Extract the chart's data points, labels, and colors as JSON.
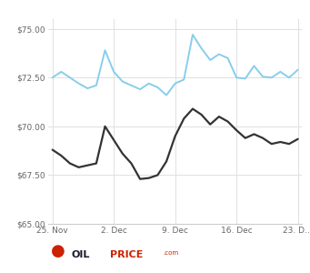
{
  "brent_x": [
    0,
    1,
    2,
    3,
    4,
    5,
    6,
    7,
    8,
    9,
    10,
    11,
    12,
    13,
    14,
    15,
    16,
    17,
    18,
    19,
    20,
    21,
    22,
    23,
    24,
    25,
    26,
    27,
    28
  ],
  "brent_y": [
    72.5,
    72.8,
    72.5,
    72.2,
    71.95,
    72.1,
    73.9,
    72.8,
    72.3,
    72.1,
    71.9,
    72.2,
    72.0,
    71.6,
    72.2,
    72.4,
    74.7,
    74.0,
    73.4,
    73.7,
    73.5,
    72.5,
    72.45,
    73.1,
    72.55,
    72.5,
    72.8,
    72.5,
    72.9
  ],
  "wti_x": [
    0,
    1,
    2,
    3,
    4,
    5,
    6,
    7,
    8,
    9,
    10,
    11,
    12,
    13,
    14,
    15,
    16,
    17,
    18,
    19,
    20,
    21,
    22,
    23,
    24,
    25,
    26,
    27,
    28
  ],
  "wti_y": [
    68.8,
    68.5,
    68.1,
    67.9,
    68.0,
    68.1,
    70.0,
    69.3,
    68.6,
    68.1,
    67.3,
    67.35,
    67.5,
    68.2,
    69.5,
    70.4,
    70.9,
    70.6,
    70.1,
    70.5,
    70.25,
    69.8,
    69.4,
    69.6,
    69.4,
    69.1,
    69.2,
    69.1,
    69.35
  ],
  "brent_color": "#87CEEB",
  "wti_color": "#333333",
  "ylim": [
    65.0,
    75.5
  ],
  "yticks": [
    65.0,
    67.5,
    70.0,
    72.5,
    75.0
  ],
  "ytick_labels": [
    "$65.00",
    "$67.50",
    "$70.00",
    "$72.50",
    "$75.00"
  ],
  "xtick_positions": [
    0,
    7,
    14,
    21,
    28
  ],
  "xtick_labels": [
    "25. Nov",
    "2. Dec",
    "9. Dec",
    "16. Dec",
    "23. D…"
  ],
  "background_color": "#ffffff",
  "grid_color": "#e0e0e0"
}
